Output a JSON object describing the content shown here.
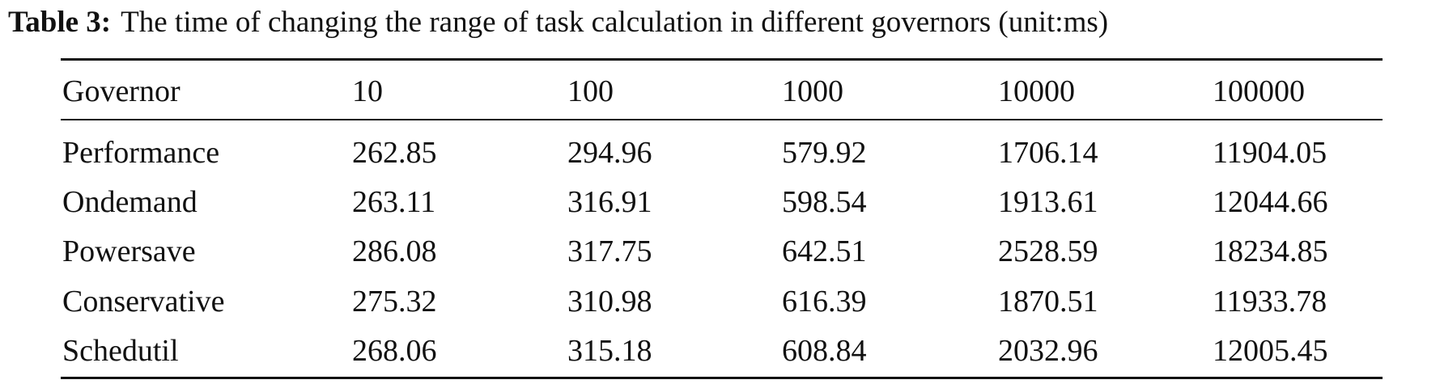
{
  "caption": {
    "label": "Table 3:",
    "text": "The time of changing the range of task calculation in different governors (unit:ms)"
  },
  "table": {
    "header": [
      "Governor",
      "10",
      "100",
      "1000",
      "10000",
      "100000"
    ],
    "rows": [
      [
        "Performance",
        "262.85",
        "294.96",
        "579.92",
        "1706.14",
        "11904.05"
      ],
      [
        "Ondemand",
        "263.11",
        "316.91",
        "598.54",
        "1913.61",
        "12044.66"
      ],
      [
        "Powersave",
        "286.08",
        "317.75",
        "642.51",
        "2528.59",
        "18234.85"
      ],
      [
        "Conservative",
        "275.32",
        "310.98",
        "616.39",
        "1870.51",
        "11933.78"
      ],
      [
        "Schedutil",
        "268.06",
        "315.18",
        "608.84",
        "2032.96",
        "12005.45"
      ]
    ]
  }
}
